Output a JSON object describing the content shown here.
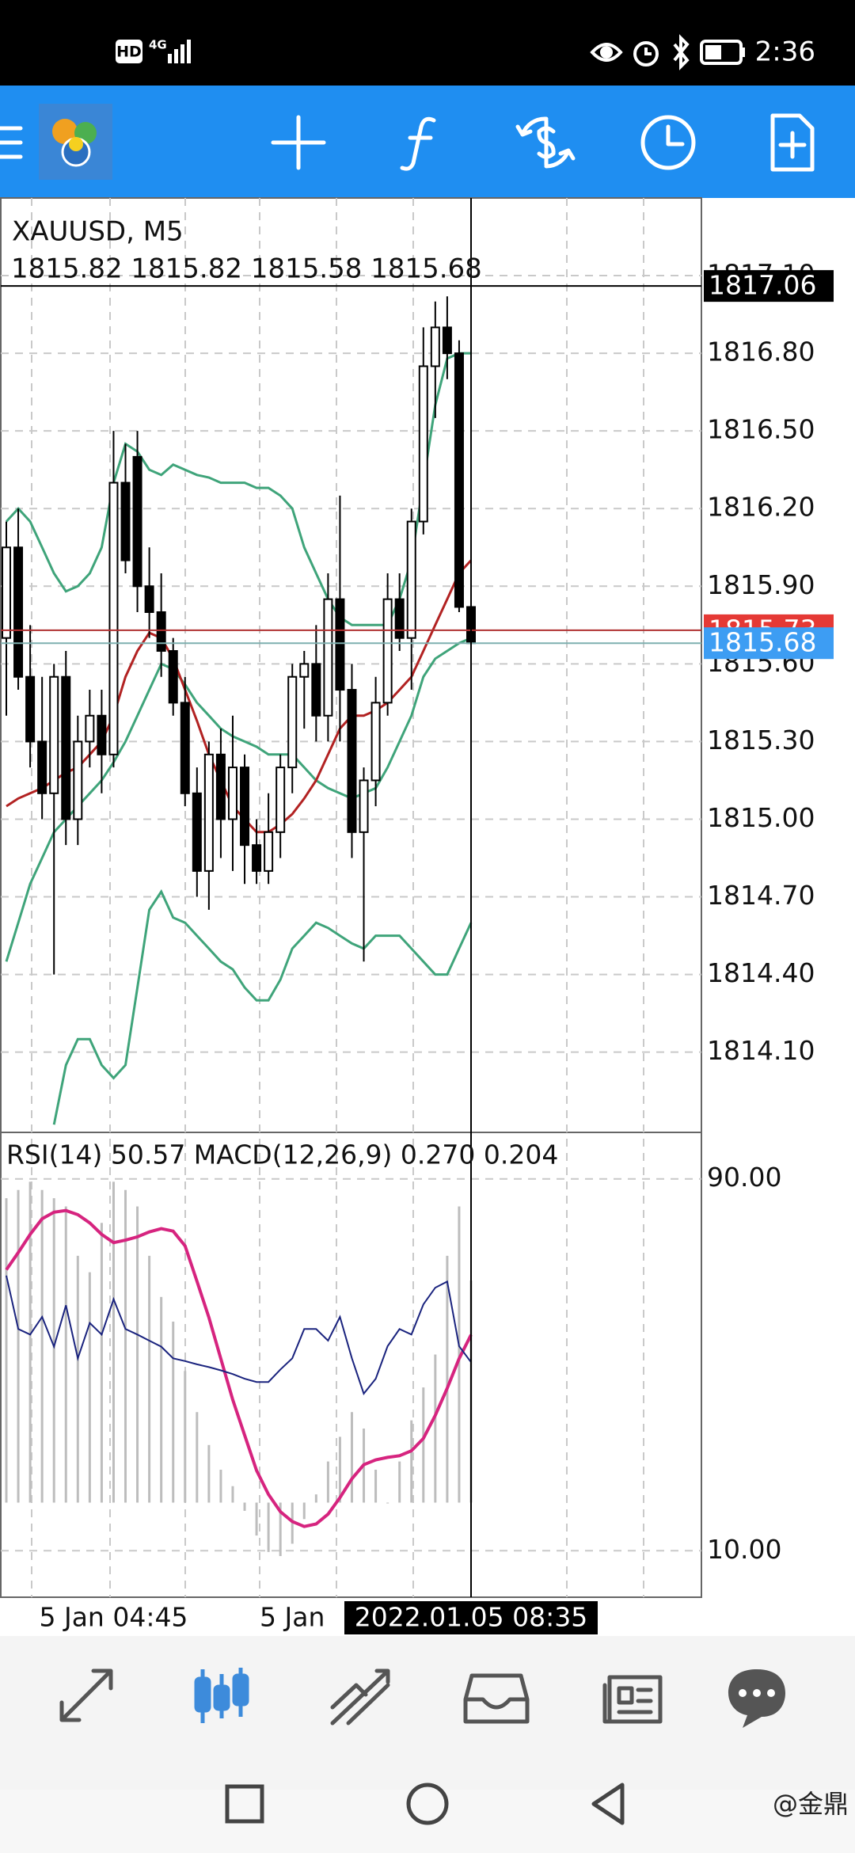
{
  "status_bar": {
    "hd": "HD",
    "network": "4G",
    "time": "2:36"
  },
  "watermark": "@金鼎",
  "chart_data": [
    {
      "type": "candlestick",
      "title": "XAUUSD, M5",
      "subtitle": "1815.82 1815.82 1815.58 1815.68",
      "categories": [
        null,
        null,
        null,
        null,
        null,
        null,
        null,
        null,
        null,
        "5 Jan 04:45",
        null,
        null,
        null,
        null,
        null,
        null,
        null,
        null,
        null,
        null,
        null,
        null,
        null,
        null,
        "5 Jan",
        null,
        null,
        null,
        null,
        null,
        null,
        null,
        null,
        null,
        null,
        null,
        null,
        null,
        null,
        "2022.01.05 08:35"
      ],
      "crosshair_index": 39,
      "open": [
        1815.7,
        1816.05,
        1815.55,
        1815.3,
        1815.1,
        1815.55,
        1815.0,
        1815.3,
        1815.4,
        1815.25,
        1816.3,
        1816.4,
        1815.9,
        1815.8,
        1815.65,
        1815.45,
        1815.1,
        1814.8,
        1815.25,
        1815.0,
        1815.2,
        1814.9,
        1814.8,
        1814.95,
        1815.2,
        1815.55,
        1815.6,
        1815.4,
        1815.85,
        1815.5,
        1814.95,
        1815.15,
        1815.45,
        1815.85,
        1815.7,
        1816.15,
        1816.75,
        1816.9,
        1816.8,
        1815.82
      ],
      "high": [
        1816.15,
        1816.2,
        1815.75,
        1815.55,
        1815.6,
        1815.65,
        1815.4,
        1815.5,
        1815.5,
        1816.5,
        1816.45,
        1816.5,
        1816.05,
        1815.95,
        1815.7,
        1815.55,
        1815.2,
        1815.3,
        1815.35,
        1815.4,
        1815.25,
        1815.0,
        1815.1,
        1815.25,
        1815.6,
        1815.65,
        1815.75,
        1815.95,
        1816.25,
        1815.6,
        1815.2,
        1815.55,
        1815.95,
        1815.95,
        1816.2,
        1816.9,
        1817.0,
        1817.02,
        1816.85,
        1815.82
      ],
      "low": [
        1815.4,
        1815.5,
        1815.2,
        1815.0,
        1814.4,
        1814.9,
        1814.9,
        1815.2,
        1815.1,
        1815.2,
        1815.95,
        1815.8,
        1815.7,
        1815.55,
        1815.4,
        1815.05,
        1814.7,
        1814.65,
        1814.85,
        1814.8,
        1814.75,
        1814.75,
        1814.75,
        1814.85,
        1815.1,
        1815.35,
        1815.3,
        1815.3,
        1815.3,
        1814.85,
        1814.45,
        1815.05,
        1815.4,
        1815.65,
        1815.5,
        1816.1,
        1816.55,
        1816.7,
        1815.8,
        1815.58
      ],
      "close": [
        1816.05,
        1815.55,
        1815.3,
        1815.1,
        1815.55,
        1815.0,
        1815.3,
        1815.4,
        1815.25,
        1816.3,
        1816.0,
        1815.9,
        1815.8,
        1815.65,
        1815.45,
        1815.1,
        1814.8,
        1815.25,
        1815.0,
        1815.2,
        1814.9,
        1814.8,
        1814.95,
        1815.2,
        1815.55,
        1815.6,
        1815.4,
        1815.85,
        1815.5,
        1814.95,
        1815.15,
        1815.45,
        1815.85,
        1815.7,
        1816.15,
        1816.75,
        1816.9,
        1816.8,
        1815.82,
        1815.68
      ],
      "series": [
        {
          "color": "#3fa47a",
          "values": [
            1816.15,
            1816.2,
            1816.15,
            1816.05,
            1815.95,
            1815.88,
            1815.9,
            1815.95,
            1816.05,
            1816.3,
            1816.45,
            1816.42,
            1816.35,
            1816.33,
            1816.37,
            1816.35,
            1816.33,
            1816.32,
            1816.3,
            1816.3,
            1816.3,
            1816.28,
            1816.28,
            1816.25,
            1816.2,
            1816.05,
            1815.95,
            1815.85,
            1815.78,
            1815.75,
            1815.75,
            1815.75,
            1815.75,
            1815.85,
            1816.0,
            1816.3,
            1816.6,
            1816.78,
            1816.8,
            1816.8
          ]
        },
        {
          "color": "#3fa47a",
          "values": [
            1814.45,
            1814.6,
            1814.75,
            1814.85,
            1814.95,
            1815.0,
            1815.05,
            1815.1,
            1815.15,
            1815.22,
            1815.3,
            1815.4,
            1815.5,
            1815.6,
            1815.58,
            1815.52,
            1815.45,
            1815.4,
            1815.35,
            1815.32,
            1815.3,
            1815.28,
            1815.25,
            1815.25,
            1815.25,
            1815.2,
            1815.15,
            1815.12,
            1815.1,
            1815.08,
            1815.1,
            1815.12,
            1815.2,
            1815.3,
            1815.4,
            1815.55,
            1815.62,
            1815.65,
            1815.68,
            1815.7
          ]
        },
        {
          "color": "#3fa47a",
          "values": [
            null,
            null,
            null,
            null,
            1813.82,
            1814.05,
            1814.15,
            1814.15,
            1814.05,
            1814.0,
            1814.05,
            1814.35,
            1814.65,
            1814.72,
            1814.62,
            1814.6,
            1814.55,
            1814.5,
            1814.45,
            1814.42,
            1814.35,
            1814.3,
            1814.3,
            1814.38,
            1814.5,
            1814.55,
            1814.6,
            1814.58,
            1814.55,
            1814.52,
            1814.5,
            1814.55,
            1814.55,
            1814.55,
            1814.5,
            1814.45,
            1814.4,
            1814.4,
            1814.5,
            1814.6
          ]
        },
        {
          "color": "#b22222",
          "values": [
            1815.05,
            1815.08,
            1815.1,
            1815.12,
            1815.15,
            1815.18,
            1815.2,
            1815.25,
            1815.3,
            1815.4,
            1815.55,
            1815.65,
            1815.72,
            1815.7,
            1815.62,
            1815.5,
            1815.38,
            1815.25,
            1815.15,
            1815.05,
            1815.0,
            1814.95,
            1814.95,
            1814.98,
            1815.02,
            1815.08,
            1815.15,
            1815.25,
            1815.35,
            1815.4,
            1815.4,
            1815.42,
            1815.45,
            1815.5,
            1815.55,
            1815.65,
            1815.75,
            1815.85,
            1815.95,
            1816.0
          ]
        }
      ],
      "ylim": [
        1813.79,
        1817.4
      ],
      "yticks": [
        {
          "value": 1814.1,
          "label": "1814.10"
        },
        {
          "value": 1814.4,
          "label": "1814.40"
        },
        {
          "value": 1814.7,
          "label": "1814.70"
        },
        {
          "value": 1815.0,
          "label": "1815.00"
        },
        {
          "value": 1815.3,
          "label": "1815.30"
        },
        {
          "value": 1815.6,
          "label": "1815.60"
        },
        {
          "value": 1815.9,
          "label": "1815.90"
        },
        {
          "value": 1816.2,
          "label": "1816.20"
        },
        {
          "value": 1816.5,
          "label": "1816.50"
        },
        {
          "value": 1816.8,
          "label": "1816.80"
        },
        {
          "value": 1817.1,
          "label": "1817.10"
        }
      ],
      "grid": true,
      "price_labels": [
        {
          "value": 1815.73,
          "label": "1815.73",
          "color": "#e53935",
          "line_color": "#b03030"
        },
        {
          "value": 1815.68,
          "label": "1815.68",
          "color": "#3d9df3",
          "line_color": "#7fb0b0"
        },
        {
          "value": 1817.06,
          "label": "1817.06",
          "color": "#000000",
          "line_color": "#000000"
        }
      ]
    },
    {
      "type": "indicator",
      "title": "RSI(14) 50.57 MACD(12,26,9) 0.270 0.204",
      "ylim": [
        0,
        100
      ],
      "yticks": [
        {
          "value": 10,
          "label": "10.00"
        },
        {
          "value": 90,
          "label": "90.00"
        }
      ],
      "grid": true,
      "y2lim": [
        -0.115,
        0.45
      ],
      "series": [
        {
          "type": "bar",
          "axis": "y2",
          "color": "#bdbdbd",
          "values": [
            0.37,
            0.38,
            0.39,
            0.38,
            0.37,
            0.36,
            0.3,
            0.28,
            0.34,
            0.39,
            0.38,
            0.36,
            0.3,
            0.25,
            0.22,
            0.16,
            0.11,
            0.07,
            0.04,
            0.02,
            -0.01,
            -0.04,
            -0.06,
            -0.065,
            -0.05,
            -0.02,
            0.01,
            0.05,
            0.08,
            0.11,
            0.09,
            0.04,
            0.0,
            0.05,
            0.1,
            0.14,
            0.18,
            0.3,
            0.36,
            0.27
          ]
        },
        {
          "type": "line",
          "axis": "y2",
          "color": "#d6247f",
          "values": [
            0.283,
            0.304,
            0.326,
            0.345,
            0.353,
            0.355,
            0.35,
            0.34,
            0.326,
            0.316,
            0.319,
            0.323,
            0.329,
            0.333,
            0.33,
            0.312,
            0.269,
            0.225,
            0.175,
            0.125,
            0.082,
            0.039,
            0.01,
            -0.011,
            -0.023,
            -0.029,
            -0.026,
            -0.014,
            0.006,
            0.029,
            0.046,
            0.052,
            0.055,
            0.057,
            0.063,
            0.078,
            0.106,
            0.139,
            0.175,
            0.204
          ]
        },
        {
          "type": "line",
          "color": "#1a237e",
          "values": [
            69.2,
            57.7,
            56.5,
            60.3,
            53.9,
            62.8,
            51.4,
            59.0,
            56.5,
            64.1,
            57.7,
            56.5,
            55.2,
            53.9,
            51.4,
            50.8,
            50.1,
            49.5,
            48.8,
            48.0,
            47.0,
            46.3,
            46.3,
            49.0,
            51.4,
            57.7,
            57.7,
            55.2,
            60.3,
            51.4,
            43.8,
            47.0,
            54.0,
            57.7,
            56.5,
            63.0,
            66.6,
            67.9,
            54.0,
            50.57
          ]
        }
      ]
    }
  ]
}
